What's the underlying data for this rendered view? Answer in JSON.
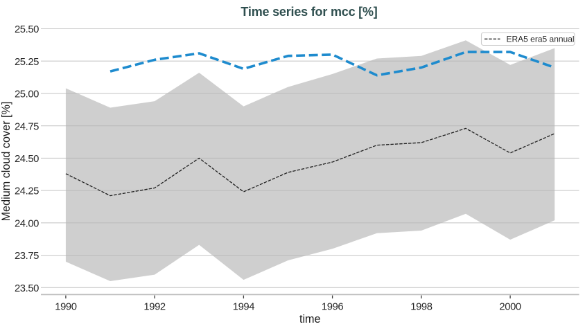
{
  "chart_data": {
    "type": "line",
    "title": "Time series for mcc [%]",
    "xlabel": "time",
    "ylabel": "Medium cloud cover [%]",
    "x": [
      1990,
      1991,
      1992,
      1993,
      1994,
      1995,
      1996,
      1997,
      1998,
      1999,
      2000,
      2001
    ],
    "band": {
      "x": [
        1990,
        1991,
        1992,
        1993,
        1994,
        1995,
        1996,
        1997,
        1998,
        1999,
        2000,
        2001
      ],
      "upper": [
        25.04,
        24.89,
        24.94,
        25.16,
        24.9,
        25.05,
        25.15,
        25.27,
        25.29,
        25.41,
        25.22,
        25.35
      ],
      "lower": [
        23.7,
        23.55,
        23.6,
        23.83,
        23.56,
        23.71,
        23.8,
        23.92,
        23.94,
        24.07,
        23.87,
        24.02
      ],
      "fill_color": "#cfcfcf"
    },
    "series": [
      {
        "id": "mean-line",
        "x": [
          1990,
          1991,
          1992,
          1993,
          1994,
          1995,
          1996,
          1997,
          1998,
          1999,
          2000,
          2001
        ],
        "values": [
          24.38,
          24.21,
          24.27,
          24.5,
          24.24,
          24.39,
          24.47,
          24.6,
          24.62,
          24.73,
          24.54,
          24.69
        ],
        "color": "#1f1f1f",
        "line_style": "dashed",
        "line_width": 1.3,
        "dash": [
          4.5,
          1.9
        ]
      },
      {
        "id": "annual-line",
        "x": [
          1991,
          1992,
          1993,
          1994,
          1995,
          1996,
          1997,
          1998,
          1999,
          2000,
          2001
        ],
        "values": [
          25.17,
          25.26,
          25.31,
          25.19,
          25.29,
          25.3,
          25.14,
          25.2,
          25.32,
          25.32,
          25.2
        ],
        "color": "#1e8bce",
        "line_style": "dashed",
        "line_width": 3.6,
        "dash": [
          12.9,
          5.6
        ]
      }
    ],
    "legend": {
      "position": "top-right",
      "entries": [
        {
          "label": "ERA5 era5 annual",
          "sample_color": "#262626",
          "sample_style": "dashed"
        }
      ]
    },
    "xticks": [
      1990,
      1992,
      1994,
      1996,
      1998,
      2000
    ],
    "xtick_labels": [
      "1990",
      "1992",
      "1994",
      "1996",
      "1998",
      "2000"
    ],
    "yticks": [
      23.5,
      23.75,
      24.0,
      24.25,
      24.5,
      24.75,
      25.0,
      25.25,
      25.5
    ],
    "ytick_labels": [
      "23.50",
      "23.75",
      "24.00",
      "24.25",
      "24.50",
      "24.75",
      "25.00",
      "25.25",
      "25.50"
    ],
    "xlim": [
      1989.44,
      2001.55
    ],
    "ylim": [
      23.446,
      25.556
    ],
    "grid": true,
    "colors": {
      "title": "#2f4f4f",
      "grid_line": "#dedede",
      "grid_line_over_band": "rgba(0,0,0,0.09)",
      "axis_spine": "#bdbdbd",
      "tick_mark": "#3d3d3d",
      "tick_label": "#262626",
      "axis_label": "#1a1a1a",
      "legend_border": "#cccccc",
      "legend_text": "#262626",
      "background": "#ffffff"
    }
  }
}
